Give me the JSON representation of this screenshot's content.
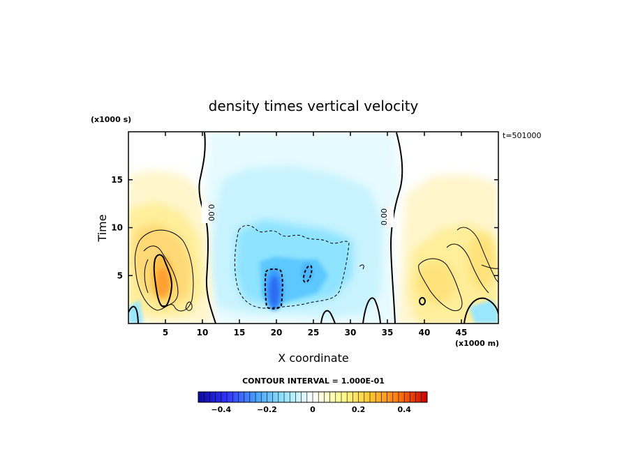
{
  "chart_data": {
    "type": "heatmap",
    "title": "density times vertical velocity",
    "xlabel": "X coordinate",
    "ylabel": "Time",
    "x_unit_label": "(x1000 m)",
    "y_unit_label": "(x1000 s)",
    "time_stamp": "t=501000",
    "xlim": [
      0,
      50
    ],
    "ylim": [
      0,
      20
    ],
    "x_ticks": [
      5,
      10,
      15,
      20,
      25,
      30,
      35,
      40,
      45
    ],
    "y_ticks": [
      5,
      10,
      15
    ],
    "contour_interval_text": "CONTOUR INTERVAL = 1.000E-01",
    "contour_label": "0.00",
    "colorbar": {
      "min": -0.5,
      "max": 0.5,
      "tick_values": [
        -0.4,
        -0.2,
        0,
        0.2,
        0.4
      ],
      "tick_labels": [
        "−0.4",
        "−0.2",
        "0",
        "0.2",
        "0.4"
      ],
      "colors": [
        "#0a0aa0",
        "#3232ff",
        "#46a0ff",
        "#96e6ff",
        "#ffffff",
        "#ffff96",
        "#ffc832",
        "#ff7814",
        "#c80000"
      ]
    },
    "features": [
      {
        "name": "left positive lobe",
        "x": 4.5,
        "y": 4.8,
        "value": 0.3
      },
      {
        "name": "central negative core",
        "x": 19.2,
        "y": 3.5,
        "value": -0.3
      },
      {
        "name": "secondary negative core",
        "x": 24.5,
        "y": 5.8,
        "value": -0.22
      },
      {
        "name": "right positive lobe",
        "x": 42.5,
        "y": 5.0,
        "value": 0.15
      }
    ]
  }
}
